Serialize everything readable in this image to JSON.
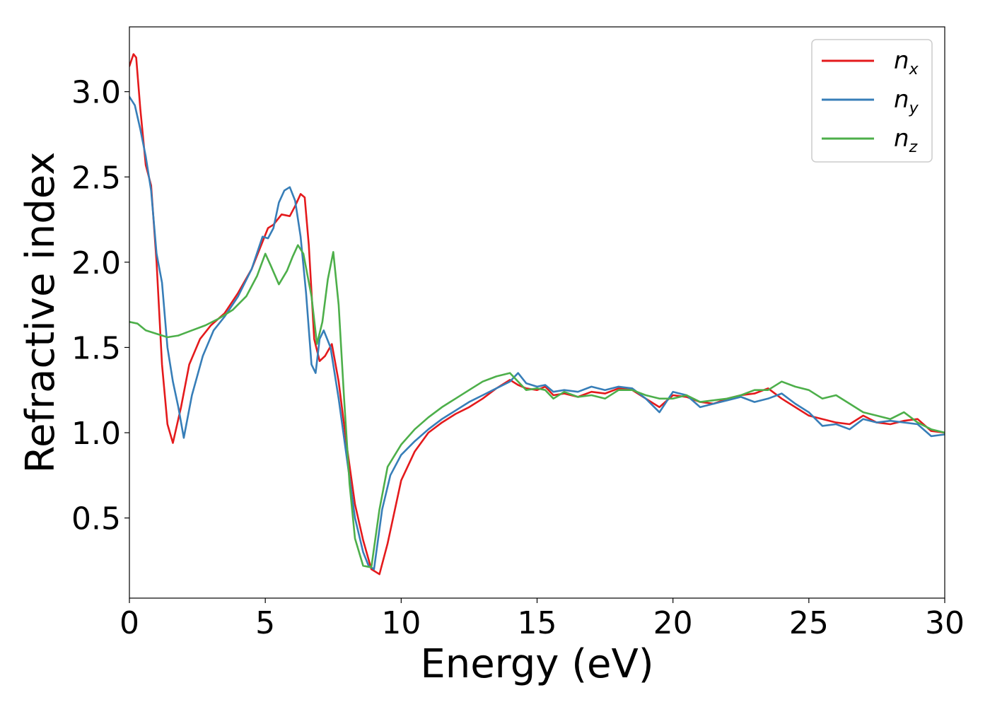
{
  "chart_data": {
    "type": "line",
    "xlabel": "Energy (eV)",
    "ylabel": "Refractive index",
    "xlim": [
      0,
      30
    ],
    "ylim": [
      0.03,
      3.38
    ],
    "xticks": [
      0,
      5,
      10,
      15,
      20,
      25,
      30
    ],
    "xtick_labels": [
      "0",
      "5",
      "10",
      "15",
      "20",
      "25",
      "30"
    ],
    "yticks": [
      0.5,
      1.0,
      1.5,
      2.0,
      2.5,
      3.0
    ],
    "ytick_labels": [
      "0.5",
      "1.0",
      "1.5",
      "2.0",
      "2.5",
      "3.0"
    ],
    "grid": false,
    "legend_position": "top-right",
    "series": [
      {
        "name": "n_x",
        "legend_base": "n",
        "legend_sub": "x",
        "color": "#e41a1c",
        "x": [
          0,
          0.15,
          0.25,
          0.4,
          0.6,
          0.8,
          1.0,
          1.2,
          1.4,
          1.6,
          1.9,
          2.2,
          2.6,
          3.0,
          3.5,
          4.0,
          4.5,
          4.9,
          5.1,
          5.3,
          5.6,
          5.9,
          6.1,
          6.3,
          6.45,
          6.6,
          6.8,
          7.0,
          7.2,
          7.45,
          7.7,
          8.0,
          8.3,
          8.6,
          8.9,
          9.2,
          9.5,
          10.0,
          10.5,
          11.0,
          11.5,
          12.0,
          12.5,
          13.0,
          13.5,
          14.0,
          14.3,
          14.6,
          15.0,
          15.3,
          15.6,
          16.0,
          16.5,
          17.0,
          17.5,
          18.0,
          18.5,
          19.0,
          19.5,
          20.0,
          20.5,
          21.0,
          21.5,
          22.0,
          22.5,
          23.0,
          23.5,
          24.0,
          24.5,
          25.0,
          25.5,
          26.0,
          26.5,
          27.0,
          27.5,
          28.0,
          28.5,
          29.0,
          29.5,
          30.0
        ],
        "values": [
          3.15,
          3.22,
          3.2,
          2.9,
          2.57,
          2.45,
          2.0,
          1.4,
          1.05,
          0.94,
          1.15,
          1.4,
          1.55,
          1.63,
          1.7,
          1.82,
          1.96,
          2.12,
          2.2,
          2.22,
          2.28,
          2.27,
          2.33,
          2.4,
          2.38,
          2.1,
          1.55,
          1.42,
          1.45,
          1.52,
          1.3,
          0.92,
          0.58,
          0.37,
          0.2,
          0.17,
          0.35,
          0.72,
          0.89,
          1.0,
          1.06,
          1.11,
          1.15,
          1.2,
          1.26,
          1.31,
          1.28,
          1.26,
          1.25,
          1.27,
          1.22,
          1.23,
          1.21,
          1.24,
          1.23,
          1.26,
          1.25,
          1.2,
          1.15,
          1.22,
          1.21,
          1.18,
          1.17,
          1.2,
          1.22,
          1.23,
          1.26,
          1.2,
          1.15,
          1.1,
          1.08,
          1.06,
          1.05,
          1.1,
          1.06,
          1.05,
          1.07,
          1.08,
          1.01,
          1.0
        ]
      },
      {
        "name": "n_y",
        "legend_base": "n",
        "legend_sub": "y",
        "color": "#377eb8",
        "x": [
          0,
          0.2,
          0.4,
          0.6,
          0.8,
          1.0,
          1.2,
          1.4,
          1.6,
          1.8,
          2.0,
          2.3,
          2.7,
          3.1,
          3.5,
          4.0,
          4.5,
          4.9,
          5.1,
          5.3,
          5.5,
          5.7,
          5.9,
          6.1,
          6.3,
          6.5,
          6.7,
          6.85,
          7.0,
          7.15,
          7.4,
          7.7,
          8.0,
          8.3,
          8.6,
          8.8,
          9.0,
          9.3,
          9.6,
          10.0,
          10.5,
          11.0,
          11.5,
          12.0,
          12.5,
          13.0,
          13.5,
          14.0,
          14.3,
          14.6,
          15.0,
          15.3,
          15.6,
          16.0,
          16.5,
          17.0,
          17.5,
          18.0,
          18.5,
          19.0,
          19.5,
          20.0,
          20.5,
          21.0,
          21.5,
          22.0,
          22.5,
          23.0,
          23.5,
          24.0,
          24.5,
          25.0,
          25.5,
          26.0,
          26.5,
          27.0,
          27.5,
          28.0,
          28.5,
          29.0,
          29.5,
          30.0
        ],
        "values": [
          2.97,
          2.92,
          2.78,
          2.62,
          2.42,
          2.05,
          1.88,
          1.5,
          1.3,
          1.15,
          0.97,
          1.22,
          1.45,
          1.6,
          1.68,
          1.8,
          1.96,
          2.15,
          2.14,
          2.2,
          2.35,
          2.42,
          2.44,
          2.36,
          2.15,
          1.82,
          1.4,
          1.35,
          1.55,
          1.6,
          1.5,
          1.2,
          0.85,
          0.5,
          0.3,
          0.22,
          0.2,
          0.55,
          0.75,
          0.87,
          0.95,
          1.02,
          1.08,
          1.13,
          1.18,
          1.22,
          1.26,
          1.3,
          1.35,
          1.29,
          1.27,
          1.28,
          1.24,
          1.25,
          1.24,
          1.27,
          1.25,
          1.27,
          1.26,
          1.2,
          1.12,
          1.24,
          1.22,
          1.15,
          1.17,
          1.19,
          1.21,
          1.18,
          1.2,
          1.23,
          1.17,
          1.12,
          1.04,
          1.05,
          1.02,
          1.08,
          1.06,
          1.07,
          1.06,
          1.05,
          0.98,
          0.99
        ]
      },
      {
        "name": "n_z",
        "legend_base": "n",
        "legend_sub": "z",
        "color": "#4daf4a",
        "x": [
          0,
          0.3,
          0.6,
          1.0,
          1.4,
          1.8,
          2.3,
          2.8,
          3.3,
          3.8,
          4.3,
          4.7,
          5.0,
          5.2,
          5.5,
          5.8,
          6.0,
          6.2,
          6.4,
          6.7,
          6.9,
          7.1,
          7.3,
          7.5,
          7.7,
          7.9,
          8.1,
          8.3,
          8.6,
          8.9,
          9.2,
          9.5,
          10.0,
          10.5,
          11.0,
          11.5,
          12.0,
          12.5,
          13.0,
          13.5,
          14.0,
          14.3,
          14.6,
          15.0,
          15.3,
          15.6,
          16.0,
          16.5,
          17.0,
          17.5,
          18.0,
          18.5,
          19.0,
          19.5,
          20.0,
          20.5,
          21.0,
          21.5,
          22.0,
          22.5,
          23.0,
          23.5,
          24.0,
          24.5,
          25.0,
          25.5,
          26.0,
          26.5,
          27.0,
          27.5,
          28.0,
          28.5,
          29.0,
          29.5,
          30.0
        ],
        "values": [
          1.65,
          1.64,
          1.6,
          1.58,
          1.56,
          1.57,
          1.6,
          1.63,
          1.67,
          1.72,
          1.8,
          1.92,
          2.05,
          1.98,
          1.87,
          1.95,
          2.03,
          2.1,
          2.05,
          1.8,
          1.52,
          1.65,
          1.9,
          2.06,
          1.75,
          1.2,
          0.7,
          0.38,
          0.22,
          0.21,
          0.55,
          0.8,
          0.93,
          1.02,
          1.09,
          1.15,
          1.2,
          1.25,
          1.3,
          1.33,
          1.35,
          1.3,
          1.25,
          1.26,
          1.25,
          1.2,
          1.24,
          1.21,
          1.22,
          1.2,
          1.25,
          1.25,
          1.22,
          1.2,
          1.2,
          1.22,
          1.18,
          1.19,
          1.2,
          1.22,
          1.25,
          1.25,
          1.3,
          1.27,
          1.25,
          1.2,
          1.22,
          1.17,
          1.12,
          1.1,
          1.08,
          1.12,
          1.06,
          1.02,
          1.0
        ]
      }
    ]
  }
}
